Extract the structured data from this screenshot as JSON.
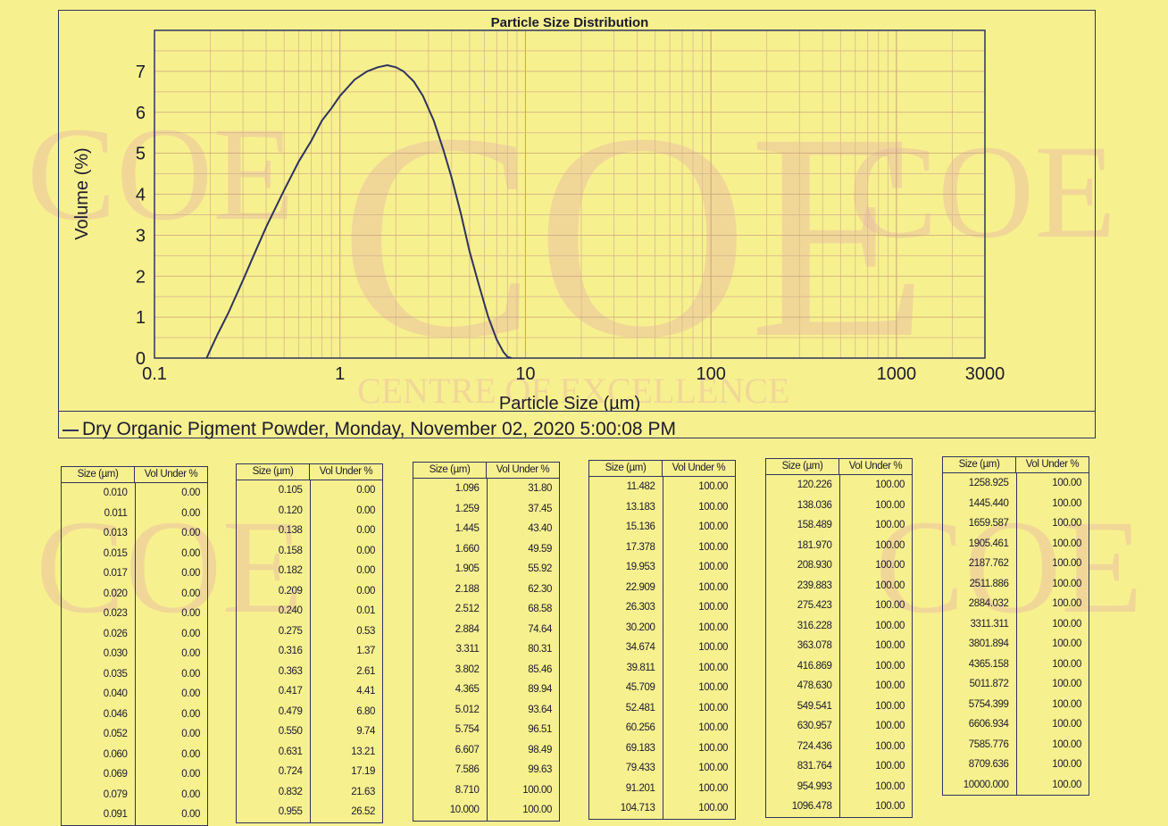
{
  "watermark": {
    "logo": "COE",
    "text": "CENTRE OF EXCELLENCE"
  },
  "chart_data": {
    "type": "line",
    "title": "Particle Size Distribution",
    "xlabel": "Particle Size (µm)",
    "ylabel": "Volume (%)",
    "xscale": "log",
    "xlim": [
      0.1,
      3000
    ],
    "ylim": [
      0,
      8
    ],
    "xticks": [
      "0.1",
      "1",
      "10",
      "100",
      "1000",
      "3000"
    ],
    "yticks": [
      "0",
      "1",
      "2",
      "3",
      "4",
      "5",
      "6",
      "7"
    ],
    "grid": true,
    "series": [
      {
        "x": [
          0.191,
          0.2,
          0.22,
          0.25,
          0.3,
          0.35,
          0.4,
          0.5,
          0.6,
          0.7,
          0.8,
          0.9,
          1.0,
          1.2,
          1.4,
          1.6,
          1.8,
          2.0,
          2.2,
          2.5,
          2.8,
          3.2,
          3.6,
          4.0,
          4.5,
          5.0,
          5.6,
          6.3,
          7.0,
          7.6,
          8.0,
          8.4
        ],
        "y": [
          0,
          0.2,
          0.6,
          1.1,
          1.9,
          2.6,
          3.2,
          4.1,
          4.8,
          5.3,
          5.8,
          6.1,
          6.4,
          6.8,
          7.0,
          7.1,
          7.15,
          7.1,
          7.0,
          6.75,
          6.4,
          5.8,
          5.1,
          4.4,
          3.5,
          2.6,
          1.8,
          1.0,
          0.45,
          0.15,
          0.03,
          0
        ]
      }
    ],
    "legend_text": "Dry Organic Pigment Powder, Monday, November 02, 2020 5:00:08 PM"
  },
  "tables": {
    "header_size": "Size (µm)",
    "header_vol": "Vol Under %",
    "columns": [
      {
        "sizes": [
          "0.010",
          "0.011",
          "0.013",
          "0.015",
          "0.017",
          "0.020",
          "0.023",
          "0.026",
          "0.030",
          "0.035",
          "0.040",
          "0.046",
          "0.052",
          "0.060",
          "0.069",
          "0.079",
          "0.091"
        ],
        "vols": [
          "0.00",
          "0.00",
          "0.00",
          "0.00",
          "0.00",
          "0.00",
          "0.00",
          "0.00",
          "0.00",
          "0.00",
          "0.00",
          "0.00",
          "0.00",
          "0.00",
          "0.00",
          "0.00",
          "0.00"
        ]
      },
      {
        "sizes": [
          "0.105",
          "0.120",
          "0.138",
          "0.158",
          "0.182",
          "0.209",
          "0.240",
          "0.275",
          "0.316",
          "0.363",
          "0.417",
          "0.479",
          "0.550",
          "0.631",
          "0.724",
          "0.832",
          "0.955"
        ],
        "vols": [
          "0.00",
          "0.00",
          "0.00",
          "0.00",
          "0.00",
          "0.00",
          "0.01",
          "0.53",
          "1.37",
          "2.61",
          "4.41",
          "6.80",
          "9.74",
          "13.21",
          "17.19",
          "21.63",
          "26.52"
        ]
      },
      {
        "sizes": [
          "1.096",
          "1.259",
          "1.445",
          "1.660",
          "1.905",
          "2.188",
          "2.512",
          "2.884",
          "3.311",
          "3.802",
          "4.365",
          "5.012",
          "5.754",
          "6.607",
          "7.586",
          "8.710",
          "10.000"
        ],
        "vols": [
          "31.80",
          "37.45",
          "43.40",
          "49.59",
          "55.92",
          "62.30",
          "68.58",
          "74.64",
          "80.31",
          "85.46",
          "89.94",
          "93.64",
          "96.51",
          "98.49",
          "99.63",
          "100.00",
          "100.00"
        ]
      },
      {
        "sizes": [
          "11.482",
          "13.183",
          "15.136",
          "17.378",
          "19.953",
          "22.909",
          "26.303",
          "30.200",
          "34.674",
          "39.811",
          "45.709",
          "52.481",
          "60.256",
          "69.183",
          "79.433",
          "91.201",
          "104.713"
        ],
        "vols": [
          "100.00",
          "100.00",
          "100.00",
          "100.00",
          "100.00",
          "100.00",
          "100.00",
          "100.00",
          "100.00",
          "100.00",
          "100.00",
          "100.00",
          "100.00",
          "100.00",
          "100.00",
          "100.00",
          "100.00"
        ]
      },
      {
        "sizes": [
          "120.226",
          "138.036",
          "158.489",
          "181.970",
          "208.930",
          "239.883",
          "275.423",
          "316.228",
          "363.078",
          "416.869",
          "478.630",
          "549.541",
          "630.957",
          "724.436",
          "831.764",
          "954.993",
          "1096.478"
        ],
        "vols": [
          "100.00",
          "100.00",
          "100.00",
          "100.00",
          "100.00",
          "100.00",
          "100.00",
          "100.00",
          "100.00",
          "100.00",
          "100.00",
          "100.00",
          "100.00",
          "100.00",
          "100.00",
          "100.00",
          "100.00"
        ]
      },
      {
        "sizes": [
          "1258.925",
          "1445.440",
          "1659.587",
          "1905.461",
          "2187.762",
          "2511.886",
          "2884.032",
          "3311.311",
          "3801.894",
          "4365.158",
          "5011.872",
          "5754.399",
          "6606.934",
          "7585.776",
          "8709.636",
          "10000.000"
        ],
        "vols": [
          "100.00",
          "100.00",
          "100.00",
          "100.00",
          "100.00",
          "100.00",
          "100.00",
          "100.00",
          "100.00",
          "100.00",
          "100.00",
          "100.00",
          "100.00",
          "100.00",
          "100.00",
          "100.00"
        ]
      }
    ]
  }
}
